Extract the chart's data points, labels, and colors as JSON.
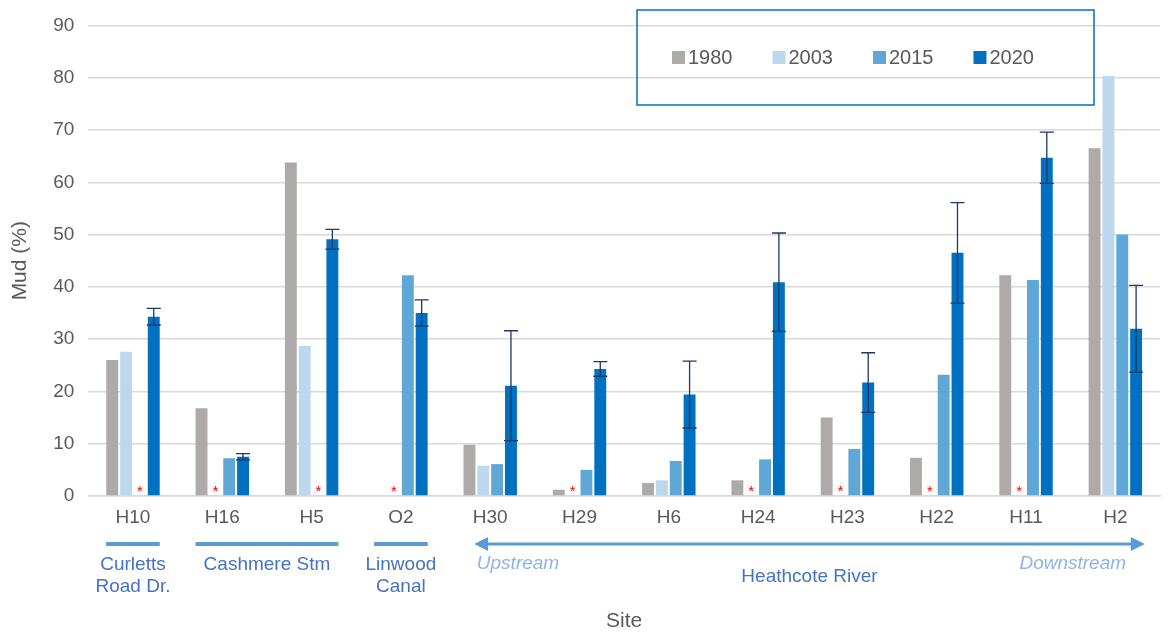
{
  "chart_data": {
    "type": "bar",
    "xlabel": "Site",
    "ylabel": "Mud (%)",
    "categories": [
      "H10",
      "H16",
      "H5",
      "O2",
      "H30",
      "H29",
      "H6",
      "H24",
      "H23",
      "H22",
      "H11",
      "H2"
    ],
    "series": [
      {
        "name": "1980",
        "color": "#aeaaaa",
        "values": [
          26,
          16.8,
          63.8,
          null,
          9.8,
          1.2,
          2.5,
          3,
          15,
          7.3,
          42.2,
          66.5
        ]
      },
      {
        "name": "2003",
        "color": "#bdd7ee",
        "values": [
          27.6,
          null,
          28.7,
          null,
          5.8,
          null,
          3,
          null,
          null,
          null,
          null,
          80.3
        ]
      },
      {
        "name": "2015",
        "color": "#5fa7d6",
        "values": [
          null,
          7.2,
          null,
          42.2,
          6.1,
          5,
          6.7,
          7,
          9,
          23.2,
          41.3,
          50
        ]
      },
      {
        "name": "2020",
        "color": "#0070c0",
        "values": [
          34.3,
          7.5,
          49.1,
          35,
          21.1,
          24.3,
          19.4,
          40.9,
          21.7,
          46.5,
          64.7,
          32
        ],
        "errors": [
          1.6,
          0.6,
          1.9,
          2.5,
          10.5,
          1.4,
          6.4,
          9.4,
          5.7,
          9.6,
          4.9,
          8.3
        ]
      }
    ],
    "ylim": [
      0,
      90
    ],
    "yticks": [
      0,
      10,
      20,
      30,
      40,
      50,
      60,
      70,
      80,
      90
    ],
    "grid": "y",
    "legend": "top right",
    "annotations": [
      "Curletts Road Dr.",
      "Cashmere Stm",
      "Linwood Canal",
      "Heathcote River",
      "Upstream",
      "Downstream",
      {
        "text": "*",
        "x": "H10",
        "y": 0
      },
      {
        "text": "*",
        "x": "H16",
        "y": 0
      },
      {
        "text": "*",
        "x": "H5",
        "y": 0
      },
      {
        "text": "*",
        "x": "O2",
        "y": 0
      },
      {
        "text": "*",
        "x": "H29",
        "y": 0
      },
      {
        "text": "*",
        "x": "H24",
        "y": 0
      },
      {
        "text": "*",
        "x": "H23",
        "y": 0
      },
      {
        "text": "*",
        "x": "H22",
        "y": 0
      },
      {
        "text": "*",
        "x": "H11",
        "y": 0
      }
    ]
  }
}
